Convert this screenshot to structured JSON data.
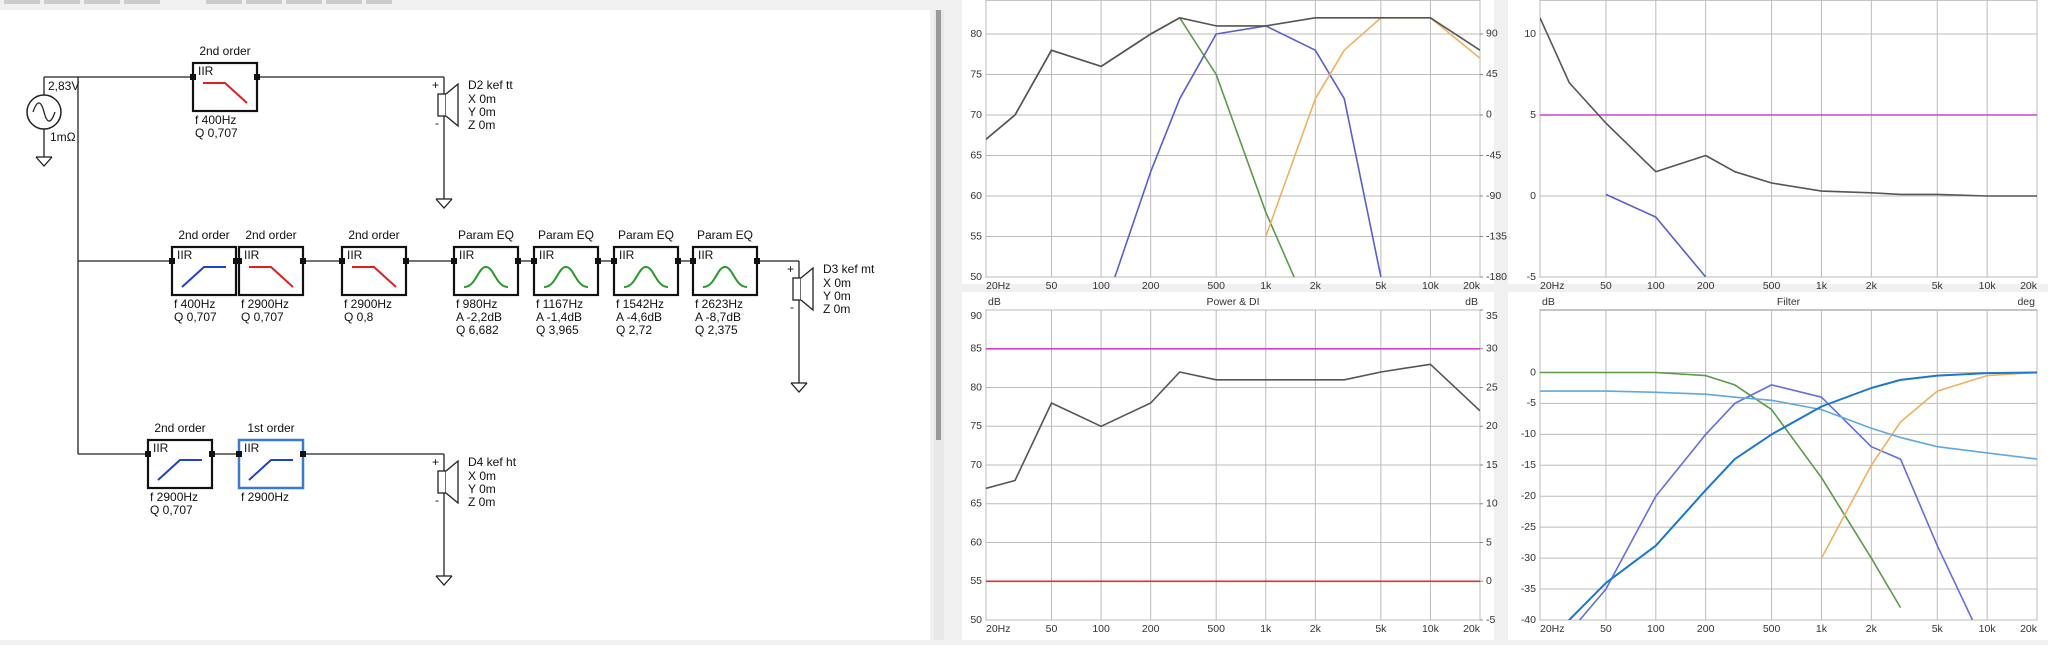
{
  "schematic": {
    "source": {
      "voltage": "2,83V",
      "impedance": "1mΩ"
    },
    "chains": [
      {
        "blocks": [
          {
            "title": "2nd order",
            "kind": "IIR",
            "shape": "lowpass",
            "params": [
              "f  400Hz",
              "Q  0,707"
            ]
          }
        ],
        "driver": {
          "name": "D2 kef tt",
          "coords": [
            "X 0m",
            "Y 0m",
            "Z 0m"
          ],
          "polarity": [
            "+",
            "-"
          ]
        }
      },
      {
        "blocks": [
          {
            "title": "2nd order",
            "kind": "IIR",
            "shape": "highpass",
            "params": [
              "f  400Hz",
              "Q  0,707"
            ]
          },
          {
            "title": "2nd order",
            "kind": "IIR",
            "shape": "lowpass",
            "params": [
              "f  2900Hz",
              "Q  0,707"
            ]
          },
          {
            "title": "2nd order",
            "kind": "IIR",
            "shape": "lowpass",
            "params": [
              "f  2900Hz",
              "Q  0,8"
            ]
          },
          {
            "title": "Param EQ",
            "kind": "IIR",
            "shape": "peak",
            "params": [
              "f  980Hz",
              "A  -2,2dB",
              "Q  6,682"
            ]
          },
          {
            "title": "Param EQ",
            "kind": "IIR",
            "shape": "peak",
            "params": [
              "f  1167Hz",
              "A  -1,4dB",
              "Q  3,965"
            ]
          },
          {
            "title": "Param EQ",
            "kind": "IIR",
            "shape": "peak",
            "params": [
              "f  1542Hz",
              "A  -4,6dB",
              "Q  2,72"
            ]
          },
          {
            "title": "Param EQ",
            "kind": "IIR",
            "shape": "peak",
            "params": [
              "f  2623Hz",
              "A  -8,7dB",
              "Q  2,375"
            ]
          }
        ],
        "driver": {
          "name": "D3 kef mt",
          "coords": [
            "X 0m",
            "Y 0m",
            "Z 0m"
          ],
          "polarity": [
            "+",
            "-"
          ]
        }
      },
      {
        "blocks": [
          {
            "title": "2nd order",
            "kind": "IIR",
            "shape": "highpass",
            "params": [
              "f  2900Hz",
              "Q  0,707"
            ]
          },
          {
            "title": "1st order",
            "kind": "IIR",
            "shape": "highpass",
            "params": [
              "f  2900Hz"
            ],
            "selected": true
          }
        ],
        "driver": {
          "name": "D4 kef ht",
          "coords": [
            "X 0m",
            "Y 0m",
            "Z 0m"
          ],
          "polarity": [
            "+",
            "-"
          ]
        }
      }
    ]
  },
  "chart_data": [
    {
      "type": "line",
      "log_x": true,
      "grid": true,
      "x": [
        20,
        30,
        50,
        100,
        200,
        300,
        500,
        1000,
        2000,
        3000,
        5000,
        10000,
        20000
      ],
      "xlim": [
        20,
        20000
      ],
      "xticks": [
        {
          "value": 20,
          "label": "20Hz"
        },
        50,
        100,
        200,
        500,
        {
          "value": 1000,
          "label": "1k"
        },
        {
          "value": 2000,
          "label": "2k"
        },
        {
          "value": 5000,
          "label": "5k"
        },
        {
          "value": 10000,
          "label": "10k"
        },
        {
          "value": 20000,
          "label": "20k"
        }
      ],
      "ylim": [
        50,
        84.2
      ],
      "yticks": [
        80,
        75,
        70,
        65,
        60,
        55,
        50
      ],
      "y2lim": [
        -180,
        127.7
      ],
      "y2ticks": [
        90,
        45,
        0,
        -45,
        -90,
        -135,
        -180
      ],
      "series": [
        {
          "color": "#5a9a4a",
          "values": [
            67,
            70,
            78,
            76,
            80,
            82,
            75,
            58,
            44,
            null,
            null,
            null,
            null
          ]
        },
        {
          "color": "#5560d0",
          "values": [
            null,
            null,
            null,
            45,
            63,
            72,
            80,
            81,
            78,
            72,
            50,
            null,
            null
          ]
        },
        {
          "color": "#f0b060",
          "values": [
            null,
            null,
            null,
            null,
            null,
            null,
            null,
            55,
            72,
            78,
            82,
            82,
            77
          ]
        },
        {
          "color": "#555555",
          "values": [
            67,
            70,
            78,
            76,
            80,
            82,
            81,
            81,
            82,
            82,
            82,
            82,
            78
          ]
        }
      ]
    },
    {
      "type": "line",
      "log_x": true,
      "grid": true,
      "x": [
        20,
        30,
        50,
        100,
        200,
        300,
        500,
        1000,
        2000,
        3000,
        5000,
        10000,
        20000
      ],
      "xlim": [
        20,
        20000
      ],
      "xticks": [
        {
          "value": 20,
          "label": "20Hz"
        },
        50,
        100,
        200,
        500,
        {
          "value": 1000,
          "label": "1k"
        },
        {
          "value": 2000,
          "label": "2k"
        },
        {
          "value": 5000,
          "label": "5k"
        },
        {
          "value": 10000,
          "label": "10k"
        },
        {
          "value": 20000,
          "label": "20k"
        }
      ],
      "ylim": [
        -5,
        12.1
      ],
      "yticks": [
        10,
        5,
        0,
        -5
      ],
      "series": [
        {
          "color": "#d040d0",
          "values": [
            5,
            5,
            5,
            5,
            5,
            5,
            5,
            5,
            5,
            5,
            5,
            5,
            5
          ]
        },
        {
          "color": "#5560d0",
          "values": [
            null,
            null,
            0.1,
            -1.3,
            -5,
            null,
            null,
            null,
            null,
            null,
            null,
            null,
            null
          ]
        },
        {
          "color": "#555555",
          "values": [
            11,
            7,
            4.5,
            1.5,
            2.5,
            1.5,
            0.8,
            0.3,
            0.2,
            0.1,
            0.1,
            0,
            0
          ]
        }
      ]
    },
    {
      "type": "line",
      "log_x": true,
      "grid": true,
      "title": "Power & DI",
      "y_label": "dB",
      "y2_label": "dB",
      "x": [
        20,
        30,
        50,
        100,
        200,
        300,
        500,
        1000,
        2000,
        3000,
        5000,
        10000,
        20000
      ],
      "xlim": [
        20,
        20000
      ],
      "xticks": [
        {
          "value": 20,
          "label": "20Hz"
        },
        50,
        100,
        200,
        500,
        {
          "value": 1000,
          "label": "1k"
        },
        {
          "value": 2000,
          "label": "2k"
        },
        {
          "value": 5000,
          "label": "5k"
        },
        {
          "value": 10000,
          "label": "10k"
        },
        {
          "value": 20000,
          "label": "20k"
        }
      ],
      "ylim": [
        50,
        90
      ],
      "yticks": [
        90,
        85,
        80,
        75,
        70,
        65,
        60,
        55,
        50
      ],
      "y2lim": [
        -5,
        35
      ],
      "y2ticks": [
        35,
        30,
        25,
        20,
        15,
        10,
        5,
        0,
        -5
      ],
      "series": [
        {
          "color": "#d040d0",
          "axis": "y2",
          "values": [
            30,
            30,
            30,
            30,
            30,
            30,
            30,
            30,
            30,
            30,
            30,
            30,
            30
          ]
        },
        {
          "color": "#e03030",
          "axis": "y2",
          "values": [
            0,
            0,
            0,
            0,
            0,
            0,
            0,
            0,
            0,
            0,
            0,
            0,
            0
          ]
        },
        {
          "color": "#555555",
          "values": [
            67,
            68,
            78,
            75,
            78,
            82,
            81,
            81,
            81,
            81,
            82,
            83,
            77
          ]
        }
      ]
    },
    {
      "type": "line",
      "log_x": true,
      "grid": true,
      "title": "Filter",
      "y_label": "dB",
      "y2_label": "deg",
      "x": [
        20,
        30,
        50,
        100,
        200,
        300,
        500,
        1000,
        2000,
        3000,
        5000,
        10000,
        20000
      ],
      "xlim": [
        20,
        20000
      ],
      "xticks": [
        {
          "value": 20,
          "label": "20Hz"
        },
        50,
        100,
        200,
        500,
        {
          "value": 1000,
          "label": "1k"
        },
        {
          "value": 2000,
          "label": "2k"
        },
        {
          "value": 5000,
          "label": "5k"
        },
        {
          "value": 10000,
          "label": "10k"
        },
        {
          "value": 20000,
          "label": "20k"
        }
      ],
      "ylim": [
        -40,
        10.1
      ],
      "yticks": [
        0,
        -5,
        -10,
        -15,
        -20,
        -25,
        -30,
        -35,
        -40
      ],
      "series": [
        {
          "color": "#5a9a4a",
          "values": [
            0,
            0,
            0,
            0,
            -0.5,
            -2,
            -6,
            -17,
            -30,
            -38,
            null,
            null,
            null
          ]
        },
        {
          "color": "#6070e0",
          "values": [
            null,
            -42,
            -35,
            -20,
            -10,
            -5,
            -2,
            -4,
            -12,
            -14,
            -28,
            -45,
            null
          ]
        },
        {
          "color": "#f0b060",
          "values": [
            null,
            null,
            null,
            null,
            null,
            null,
            null,
            -30,
            -15,
            -8,
            -3,
            -0.5,
            0
          ]
        },
        {
          "color": "#60a8e0",
          "values": [
            -3,
            -3,
            -3,
            -3.2,
            -3.5,
            -4,
            -4.5,
            -6,
            -9,
            -10.5,
            -12,
            -13,
            -14
          ]
        },
        {
          "color": "#1a78d0",
          "width": 2,
          "values": [
            -44,
            -40,
            -34,
            -28,
            -19,
            -14,
            -10,
            -5.5,
            -2.5,
            -1.2,
            -0.5,
            -0.1,
            0
          ]
        }
      ]
    }
  ]
}
